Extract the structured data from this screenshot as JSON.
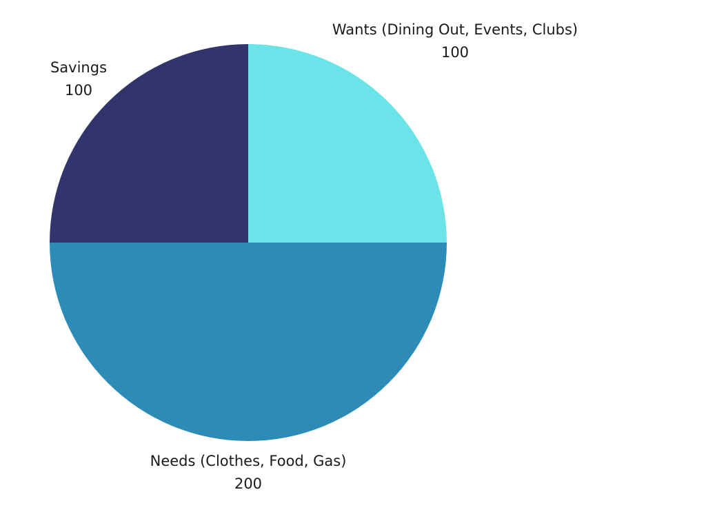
{
  "chart_data": {
    "type": "pie",
    "title": "",
    "slices": [
      {
        "label": "Wants (Dining Out, Events, Clubs)",
        "value": 100,
        "value_text": "100",
        "color": "#6ae4e8"
      },
      {
        "label": "Needs (Clothes, Food, Gas)",
        "value": 200,
        "value_text": "200",
        "color": "#2d8bb8"
      },
      {
        "label": "Savings",
        "value": 100,
        "value_text": "100",
        "color": "#31356b"
      }
    ],
    "start_angle": "12 o'clock",
    "direction": "clockwise",
    "legend": "none",
    "labels": "outside, category name with value on next line"
  }
}
